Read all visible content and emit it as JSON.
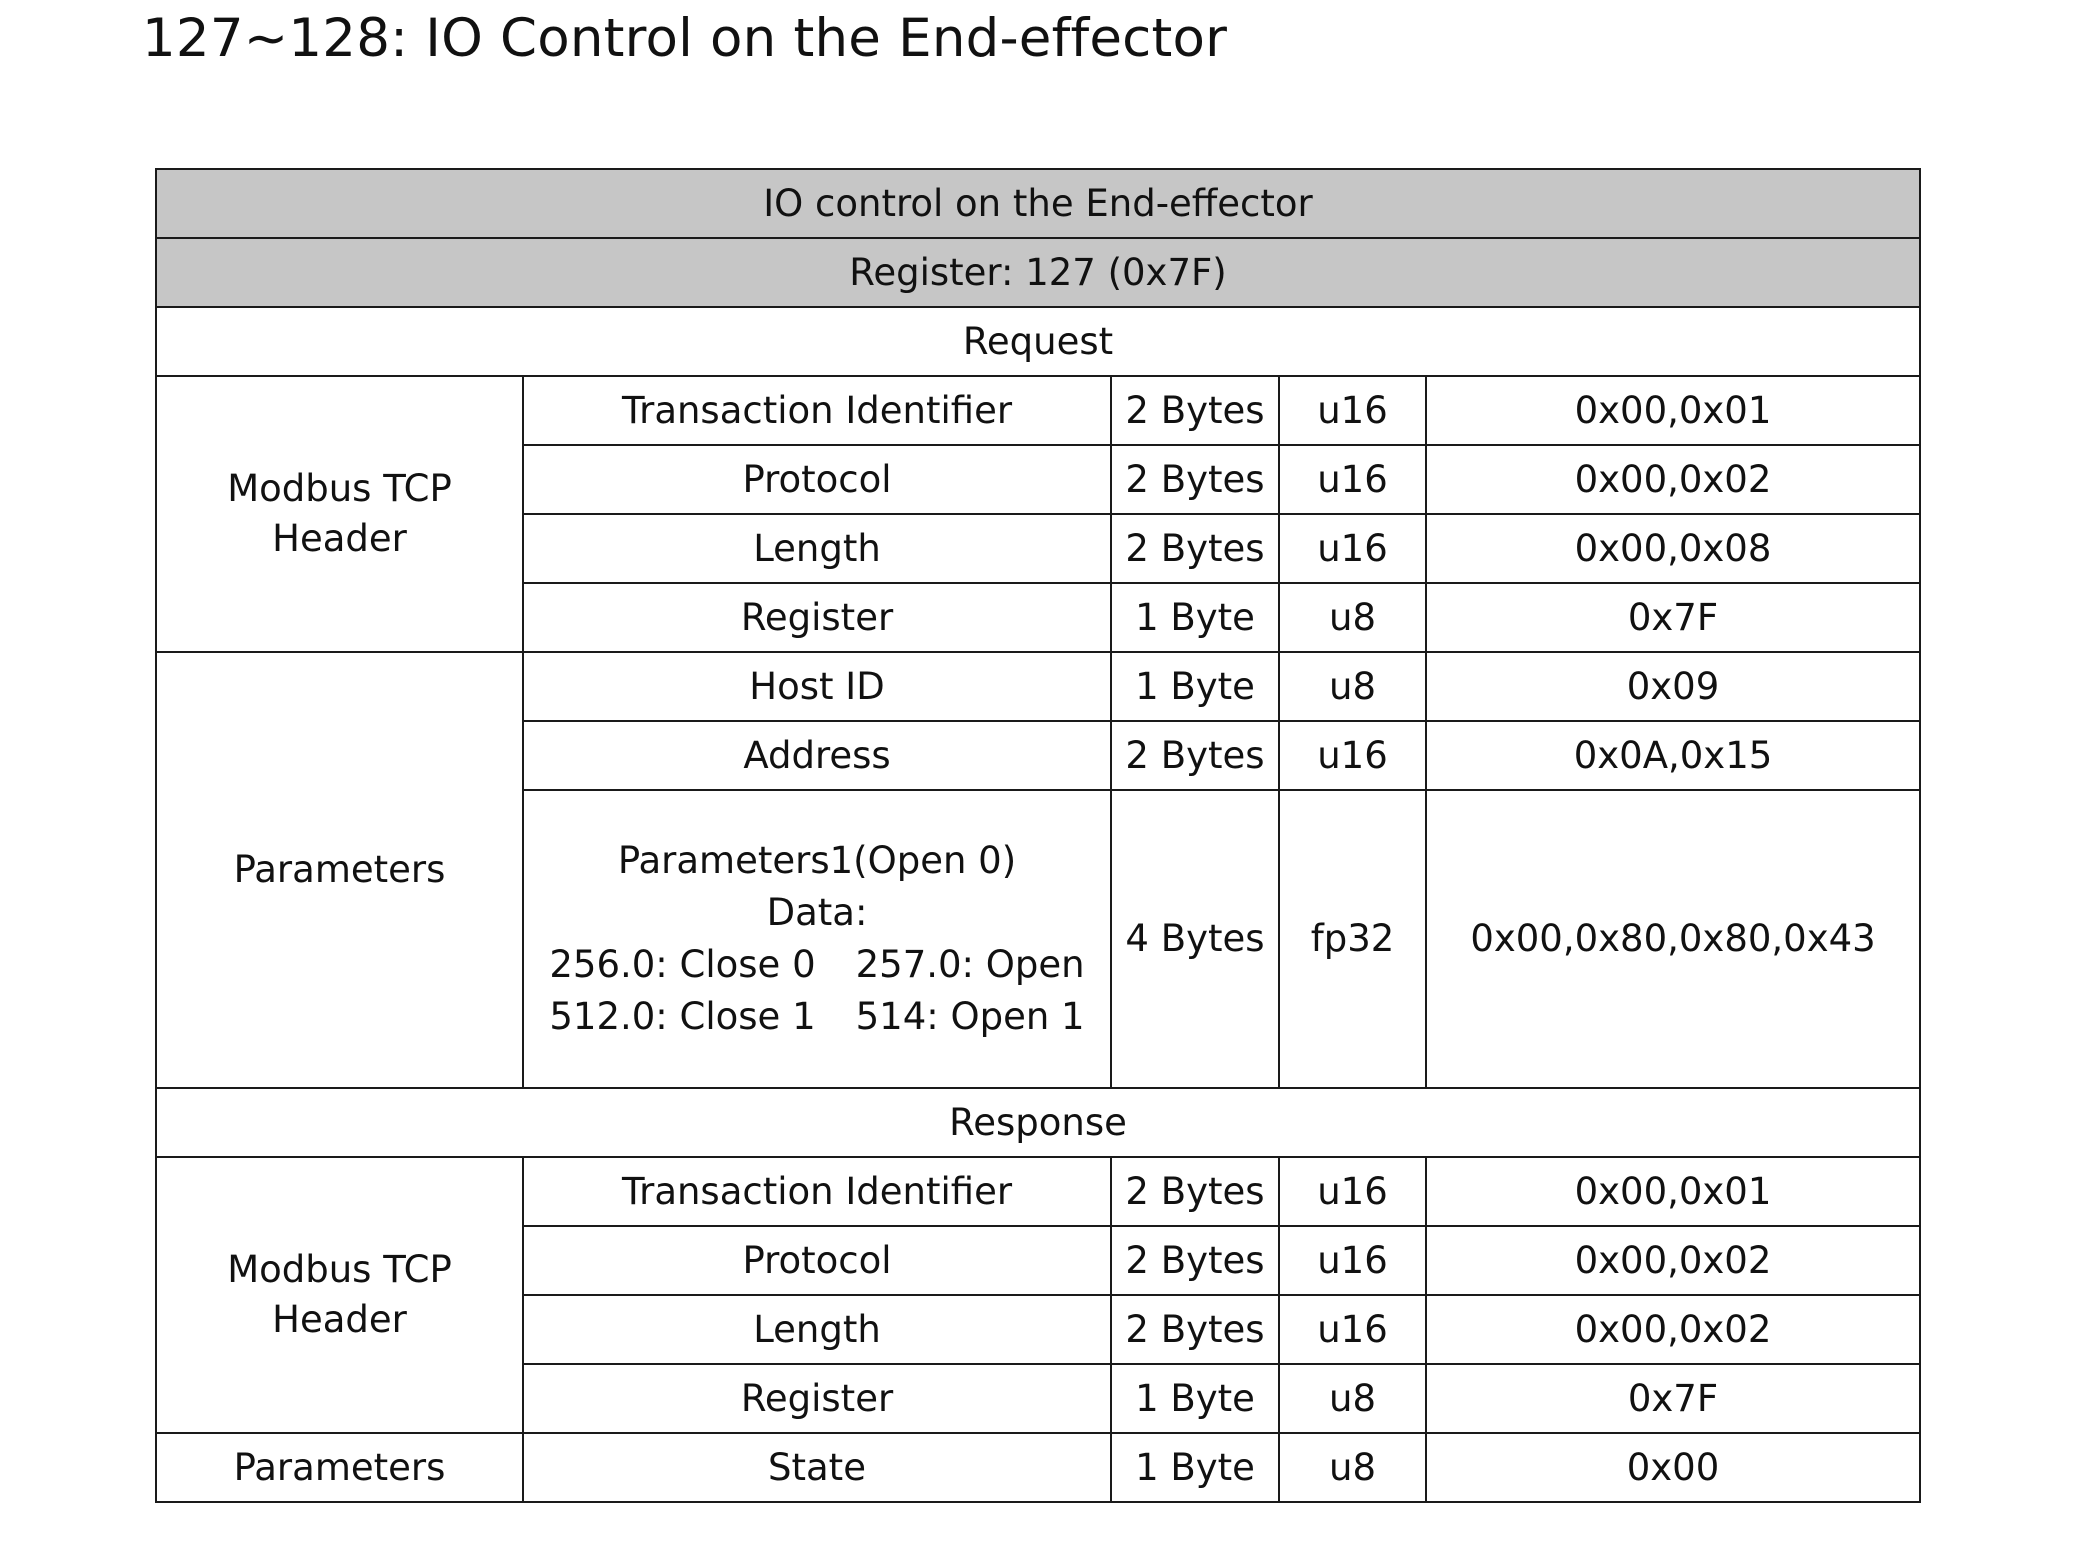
{
  "title": "127~128: IO Control on the End-effector",
  "table": {
    "caption": "IO control on the End-effector",
    "register_label": "Register: 127 (0x7F)",
    "request": {
      "label": "Request",
      "header_group": "Modbus TCP Header",
      "header_rows": [
        {
          "field": "Transaction Identifier",
          "size": "2 Bytes",
          "type": "u16",
          "value": "0x00,0x01"
        },
        {
          "field": "Protocol",
          "size": "2 Bytes",
          "type": "u16",
          "value": "0x00,0x02"
        },
        {
          "field": "Length",
          "size": "2 Bytes",
          "type": "u16",
          "value": "0x00,0x08"
        },
        {
          "field": "Register",
          "size": "1 Byte",
          "type": "u8",
          "value": "0x7F"
        }
      ],
      "param_group": "Parameters",
      "param_rows": [
        {
          "field": "Host ID",
          "size": "1 Byte",
          "type": "u8",
          "value": "0x09"
        },
        {
          "field": "Address",
          "size": "2 Bytes",
          "type": "u16",
          "value": "0x0A,0x15"
        }
      ],
      "param_detail": {
        "line1": "Parameters1(Open 0)",
        "line2": "Data:",
        "opt1": "256.0: Close 0",
        "opt2": "257.0: Open",
        "opt3": "512.0: Close 1",
        "opt4": "514: Open 1",
        "size": "4 Bytes",
        "type": "fp32",
        "value": "0x00,0x80,0x80,0x43"
      }
    },
    "response": {
      "label": "Response",
      "header_group": "Modbus TCP Header",
      "header_rows": [
        {
          "field": "Transaction Identifier",
          "size": "2 Bytes",
          "type": "u16",
          "value": "0x00,0x01"
        },
        {
          "field": "Protocol",
          "size": "2 Bytes",
          "type": "u16",
          "value": "0x00,0x02"
        },
        {
          "field": "Length",
          "size": "2 Bytes",
          "type": "u16",
          "value": "0x00,0x02"
        },
        {
          "field": "Register",
          "size": "1 Byte",
          "type": "u8",
          "value": "0x7F"
        }
      ],
      "param_group": "Parameters",
      "param_rows": [
        {
          "field": "State",
          "size": "1 Byte",
          "type": "u8",
          "value": "0x00"
        }
      ]
    }
  }
}
